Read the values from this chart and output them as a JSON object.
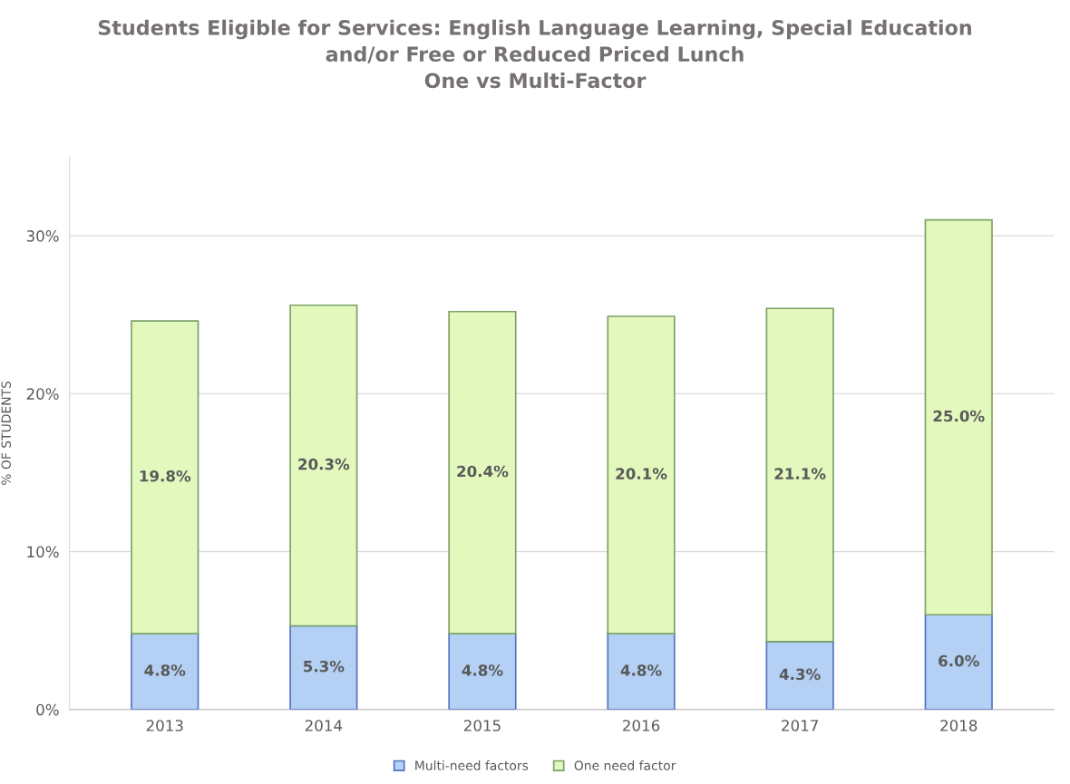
{
  "chart_data": {
    "type": "bar",
    "title": "Students Eligible for Services: English Language Learning, Special Education\nand/or Free or Reduced Priced Lunch\nOne vs Multi-Factor",
    "ylabel": "% OF STUDENTS",
    "categories": [
      "2013",
      "2014",
      "2015",
      "2016",
      "2017",
      "2018"
    ],
    "stacked": true,
    "series": [
      {
        "name": "Multi-need factors",
        "color": "#b4d0f4",
        "values": [
          4.8,
          5.3,
          4.8,
          4.8,
          4.3,
          6.0
        ],
        "value_labels": [
          "4.8%",
          "5.3%",
          "4.8%",
          "4.8%",
          "4.3%",
          "6.0%"
        ]
      },
      {
        "name": "One need factor",
        "color": "#e2f8bd",
        "values": [
          19.8,
          20.3,
          20.4,
          20.1,
          21.1,
          25.0
        ],
        "value_labels": [
          "19.8%",
          "20.3%",
          "20.4%",
          "20.1%",
          "21.1%",
          "25.0%"
        ]
      }
    ],
    "ylim": [
      0,
      35
    ],
    "yticks": [
      {
        "value": 0,
        "label": "0%"
      },
      {
        "value": 10,
        "label": "10%"
      },
      {
        "value": 20,
        "label": "20%"
      },
      {
        "value": 30,
        "label": "30%"
      }
    ],
    "grid": "y",
    "legend": "bottom"
  }
}
